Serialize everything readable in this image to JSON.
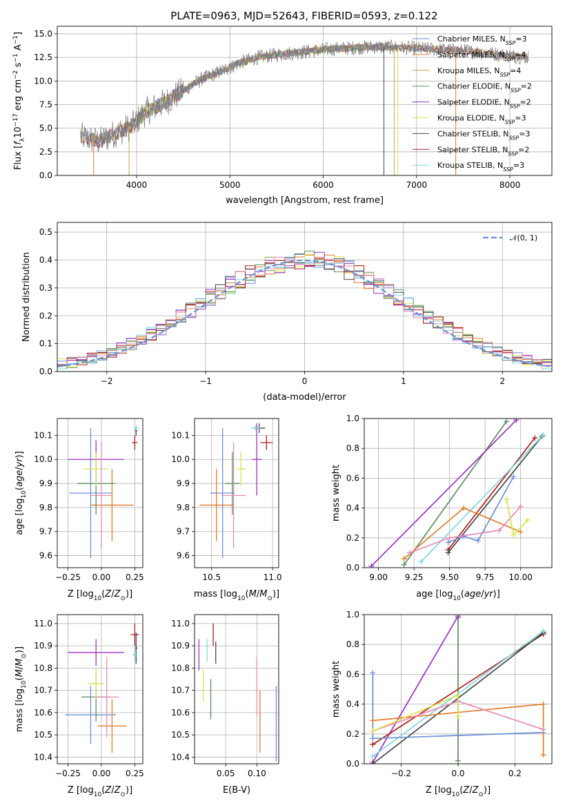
{
  "title": "PLATE=0963, MJD=52643, FIBERID=0593, z=0.122",
  "colors": {
    "Chabrier MILES": "#6a8fd6",
    "Salpeter MILES": "#e07c2a",
    "Kroupa MILES": "#c8a24a",
    "Chabrier ELODIE": "#5c8a5c",
    "Salpeter ELODIE": "#9a2fc0",
    "Kroupa ELODIE": "#d8e34a",
    "Chabrier STELIB": "#444444",
    "Salpeter STELIB": "#b01a1a",
    "Kroupa STELIB": "#7fd6e0",
    "pink": "#e38ab5",
    "gray": "#808080",
    "normal": "#6a8fd6"
  },
  "chart_data": [
    {
      "type": "line",
      "id": "spectrum",
      "xlabel": "wavelength [Angstrom, rest frame]",
      "ylabel": "Flux [f_λ10^-17 erg cm^-2 s^-1 A^-1]",
      "ylabel_parts": {
        "a": "Flux [",
        "b": "f",
        "c": "λ",
        "d": "10",
        "e": "−17",
        "f": " erg cm",
        "g": "−2",
        "h": " s",
        "i": "−1",
        "j": " A",
        "k": "−1",
        "l": "]"
      },
      "xlim": [
        3150,
        8450
      ],
      "ylim": [
        0,
        15.8
      ],
      "xticks": [
        4000,
        5000,
        6000,
        7000,
        8000
      ],
      "yticks": [
        0.0,
        2.5,
        5.0,
        7.5,
        10.0,
        12.5,
        15.0
      ],
      "ytick_labels": [
        "0.0",
        "2.5",
        "5.0",
        "7.5",
        "10.0",
        "12.5",
        "15.0"
      ],
      "continuum": [
        [
          3400,
          4.1
        ],
        [
          3600,
          3.6
        ],
        [
          3800,
          4.6
        ],
        [
          3950,
          5.2
        ],
        [
          4100,
          6.8
        ],
        [
          4300,
          7.7
        ],
        [
          4500,
          9.0
        ],
        [
          4700,
          10.2
        ],
        [
          4900,
          11.0
        ],
        [
          5100,
          11.9
        ],
        [
          5300,
          12.5
        ],
        [
          5500,
          12.8
        ],
        [
          5700,
          13.0
        ],
        [
          5900,
          13.2
        ],
        [
          6100,
          13.4
        ],
        [
          6300,
          13.5
        ],
        [
          6500,
          13.6
        ],
        [
          6700,
          13.6
        ],
        [
          6900,
          13.5
        ],
        [
          7100,
          13.4
        ],
        [
          7300,
          13.3
        ],
        [
          7500,
          13.2
        ],
        [
          7700,
          13.0
        ],
        [
          7900,
          12.8
        ],
        [
          8100,
          12.6
        ],
        [
          8200,
          12.5
        ]
      ],
      "series": [
        {
          "name": "Chabrier MILES, N_SSP=3",
          "n": "3"
        },
        {
          "name": "Salpeter MILES, N_SSP=4",
          "n": "4"
        },
        {
          "name": "Kroupa MILES, N_SSP=4",
          "n": "4"
        },
        {
          "name": "Chabrier ELODIE, N_SSP=2",
          "n": "2"
        },
        {
          "name": "Salpeter ELODIE, N_SSP=2",
          "n": "2"
        },
        {
          "name": "Kroupa ELODIE, N_SSP=3",
          "n": "3"
        },
        {
          "name": "Chabrier STELIB, N_SSP=3",
          "n": "3"
        },
        {
          "name": "Salpeter STELIB, N_SSP=2",
          "n": "2"
        },
        {
          "name": "Kroupa STELIB, N_SSP=3",
          "n": "3"
        }
      ],
      "legend": [
        {
          "base": "Chabrier MILES, N",
          "sub": "SSP",
          "tail": "=3"
        },
        {
          "base": "Salpeter MILES, N",
          "sub": "SSP",
          "tail": "=4"
        },
        {
          "base": "Kroupa MILES, N",
          "sub": "SSP",
          "tail": "=4"
        },
        {
          "base": "Chabrier ELODIE, N",
          "sub": "SSP",
          "tail": "=2"
        },
        {
          "base": "Salpeter ELODIE, N",
          "sub": "SSP",
          "tail": "=2"
        },
        {
          "base": "Kroupa ELODIE, N",
          "sub": "SSP",
          "tail": "=3"
        },
        {
          "base": "Chabrier STELIB, N",
          "sub": "SSP",
          "tail": "=3"
        },
        {
          "base": "Salpeter STELIB, N",
          "sub": "SSP",
          "tail": "=2"
        },
        {
          "base": "Kroupa STELIB, N",
          "sub": "SSP",
          "tail": "=3"
        }
      ],
      "legend_position": "upper-right"
    },
    {
      "type": "histogram",
      "id": "residuals",
      "xlabel": "(data-model)/error",
      "ylabel": "Normed distribution",
      "xlim": [
        -2.5,
        2.5
      ],
      "ylim": [
        0,
        0.535
      ],
      "xticks": [
        -2,
        -1,
        0,
        1,
        2
      ],
      "xtick_labels": [
        "−2",
        "−1",
        "0",
        "1",
        "2"
      ],
      "yticks": [
        0.0,
        0.1,
        0.2,
        0.3,
        0.4,
        0.5
      ],
      "ytick_labels": [
        "0.0",
        "0.1",
        "0.2",
        "0.3",
        "0.4",
        "0.5"
      ],
      "bin_width": 0.1,
      "bin_start": -2.5,
      "legend": {
        "label": "𝒩(0, 1)"
      },
      "legend_position": "upper-right",
      "grid": true
    },
    {
      "type": "errorbar",
      "id": "age_vs_Z",
      "xlabel": "Z [log10(Z/Z⊙)]",
      "ylabel": "age [log10(age/yr)]",
      "xlim": [
        -0.33,
        0.31
      ],
      "ylim": [
        9.55,
        10.17
      ],
      "xticks": [
        -0.25,
        0.0,
        0.25
      ],
      "xtick_labels": [
        "−0.25",
        "0.00",
        "0.25"
      ],
      "yticks": [
        9.6,
        9.7,
        9.8,
        9.9,
        10.0,
        10.1
      ],
      "ytick_labels": [
        "9.6",
        "9.7",
        "9.8",
        "9.9",
        "10.0",
        "10.1"
      ],
      "points": [
        {
          "color": "normal",
          "x": -0.08,
          "xerr": 0.16,
          "y": 9.86,
          "yerr": 0.27
        },
        {
          "color": "Salpeter MILES",
          "x": 0.08,
          "xerr": 0.16,
          "y": 9.81,
          "yerr": 0.15
        },
        {
          "color": "Chabrier ELODIE",
          "x": -0.04,
          "xerr": 0.14,
          "y": 9.9,
          "yerr": 0.13
        },
        {
          "color": "Salpeter ELODIE",
          "x": -0.04,
          "xerr": 0.21,
          "y": 10.0,
          "yerr": 0.08
        },
        {
          "color": "Kroupa ELODIE",
          "x": -0.04,
          "xerr": 0.09,
          "y": 9.96,
          "yerr": 0.07
        },
        {
          "color": "pink",
          "x": 0.0,
          "xerr": 0.08,
          "y": 9.85,
          "yerr": 0.22
        },
        {
          "color": "Salpeter STELIB",
          "x": 0.25,
          "xerr": 0.02,
          "y": 10.07,
          "yerr": 0.03
        },
        {
          "color": "Chabrier STELIB",
          "x": 0.26,
          "xerr": 0.01,
          "y": 10.12,
          "yerr": 0.02
        },
        {
          "color": "Kroupa STELIB",
          "x": 0.26,
          "xerr": 0.02,
          "y": 10.13,
          "yerr": 0.01
        }
      ]
    },
    {
      "type": "errorbar",
      "id": "age_vs_mass",
      "xlabel": "mass [log10(M/M⊙)]",
      "ylabel": "",
      "xlim": [
        10.36,
        11.05
      ],
      "ylim": [
        9.55,
        10.17
      ],
      "xticks": [
        10.5,
        11.0
      ],
      "xtick_labels": [
        "10.5",
        "11.0"
      ],
      "yticks": [
        9.6,
        9.7,
        9.8,
        9.9,
        10.0,
        10.1
      ],
      "ytick_labels": [
        "9.6",
        "9.7",
        "9.8",
        "9.9",
        "10.0",
        "10.1"
      ],
      "points": [
        {
          "color": "normal",
          "x": 10.59,
          "xerr": 0.1,
          "y": 9.86,
          "yerr": 0.27
        },
        {
          "color": "Salpeter MILES",
          "x": 10.54,
          "xerr": 0.14,
          "y": 9.81,
          "yerr": 0.15
        },
        {
          "color": "Chabrier ELODIE",
          "x": 10.67,
          "xerr": 0.06,
          "y": 9.9,
          "yerr": 0.13
        },
        {
          "color": "Salpeter ELODIE",
          "x": 10.87,
          "xerr": 0.04,
          "y": 10.0,
          "yerr": 0.15
        },
        {
          "color": "Kroupa ELODIE",
          "x": 10.74,
          "xerr": 0.04,
          "y": 9.96,
          "yerr": 0.07
        },
        {
          "color": "pink",
          "x": 10.68,
          "xerr": 0.1,
          "y": 9.85,
          "yerr": 0.22
        },
        {
          "color": "Salpeter STELIB",
          "x": 10.95,
          "xerr": 0.05,
          "y": 10.07,
          "yerr": 0.03
        },
        {
          "color": "Chabrier STELIB",
          "x": 10.89,
          "xerr": 0.05,
          "y": 10.13,
          "yerr": 0.02
        },
        {
          "color": "Kroupa STELIB",
          "x": 10.86,
          "xerr": 0.04,
          "y": 10.13,
          "yerr": 0.01
        }
      ]
    },
    {
      "type": "line",
      "id": "weight_vs_age",
      "xlabel": "age [log10(age/yr)]",
      "ylabel": "mass weight",
      "xlim": [
        8.9,
        10.22
      ],
      "ylim": [
        0,
        1.0
      ],
      "xticks": [
        9.0,
        9.25,
        9.5,
        9.75,
        10.0
      ],
      "xtick_labels": [
        "9.00",
        "9.25",
        "9.50",
        "9.75",
        "10.00"
      ],
      "yticks": [
        0.0,
        0.2,
        0.4,
        0.6,
        0.8,
        1.0
      ],
      "ytick_labels": [
        "0.0",
        "0.2",
        "0.4",
        "0.6",
        "0.8",
        "1.0"
      ],
      "series": [
        {
          "color": "Chabrier ELODIE",
          "x": [
            9.18,
            9.9
          ],
          "y": [
            0.02,
            0.98
          ]
        },
        {
          "color": "Salpeter ELODIE",
          "x": [
            8.95,
            9.97
          ],
          "y": [
            0.01,
            0.99
          ]
        },
        {
          "color": "Salpeter STELIB",
          "x": [
            9.49,
            10.1
          ],
          "y": [
            0.12,
            0.87
          ]
        },
        {
          "color": "Chabrier STELIB",
          "x": [
            9.49,
            10.15
          ],
          "y": [
            0.1,
            0.88
          ]
        },
        {
          "color": "Kroupa STELIB",
          "x": [
            9.3,
            10.16
          ],
          "y": [
            0.04,
            0.89
          ]
        },
        {
          "color": "normal",
          "x": [
            9.49,
            9.6,
            9.7,
            9.95
          ],
          "y": [
            0.17,
            0.21,
            0.18,
            0.61
          ]
        },
        {
          "color": "Salpeter MILES",
          "x": [
            9.18,
            9.6,
            10.0
          ],
          "y": [
            0.06,
            0.4,
            0.24
          ]
        },
        {
          "color": "pink",
          "x": [
            9.22,
            9.5,
            9.85,
            10.0
          ],
          "y": [
            0.1,
            0.2,
            0.25,
            0.41
          ]
        },
        {
          "color": "Kroupa ELODIE",
          "x": [
            9.9,
            9.95,
            10.05
          ],
          "y": [
            0.46,
            0.22,
            0.32
          ]
        }
      ],
      "grid": true
    },
    {
      "type": "errorbar",
      "id": "mass_vs_Z",
      "xlabel": "Z [log10(Z/Z⊙)]",
      "ylabel": "mass [log10(M/M⊙)]",
      "xlim": [
        -0.33,
        0.31
      ],
      "ylim": [
        10.37,
        11.04
      ],
      "xticks": [
        -0.25,
        0.0,
        0.25
      ],
      "xtick_labels": [
        "−0.25",
        "0.00",
        "0.25"
      ],
      "yticks": [
        10.4,
        10.5,
        10.6,
        10.7,
        10.8,
        10.9,
        11.0
      ],
      "ytick_labels": [
        "10.4",
        "10.5",
        "10.6",
        "10.7",
        "10.8",
        "10.9",
        "11.0"
      ],
      "points": [
        {
          "color": "normal",
          "x": -0.08,
          "xerr": 0.19,
          "y": 10.59,
          "yerr": 0.13
        },
        {
          "color": "Salpeter MILES",
          "x": 0.08,
          "xerr": 0.11,
          "y": 10.54,
          "yerr": 0.12
        },
        {
          "color": "Chabrier ELODIE",
          "x": -0.04,
          "xerr": 0.11,
          "y": 10.67,
          "yerr": 0.11
        },
        {
          "color": "Salpeter ELODIE",
          "x": -0.04,
          "xerr": 0.21,
          "y": 10.87,
          "yerr": 0.06
        },
        {
          "color": "Kroupa ELODIE",
          "x": -0.04,
          "xerr": 0.06,
          "y": 10.73,
          "yerr": 0.07
        },
        {
          "color": "pink",
          "x": 0.04,
          "xerr": 0.09,
          "y": 10.67,
          "yerr": 0.18
        },
        {
          "color": "Salpeter STELIB",
          "x": 0.25,
          "xerr": 0.03,
          "y": 10.95,
          "yerr": 0.05
        },
        {
          "color": "Chabrier STELIB",
          "x": 0.26,
          "xerr": 0.01,
          "y": 10.89,
          "yerr": 0.07
        },
        {
          "color": "Kroupa STELIB",
          "x": 0.25,
          "xerr": 0.02,
          "y": 10.86,
          "yerr": 0.04
        }
      ]
    },
    {
      "type": "errorbar",
      "id": "mass_vs_EBV",
      "xlabel": "E(B-V)",
      "ylabel": "",
      "xlim": [
        0.0,
        0.135
      ],
      "ylim": [
        10.37,
        11.04
      ],
      "xticks": [
        0.05,
        0.1
      ],
      "xtick_labels": [
        "0.05",
        "0.10"
      ],
      "yticks": [
        10.4,
        10.5,
        10.6,
        10.7,
        10.8,
        10.9,
        11.0
      ],
      "ytick_labels": [
        "10.4",
        "10.5",
        "10.6",
        "10.7",
        "10.8",
        "10.9",
        "11.0"
      ],
      "points": [
        {
          "color": "Salpeter ELODIE",
          "x": 0.007,
          "y": 10.86,
          "yerr": 0.07
        },
        {
          "color": "Kroupa ELODIE",
          "x": 0.014,
          "y": 10.72,
          "yerr": 0.07
        },
        {
          "color": "Kroupa STELIB",
          "x": 0.02,
          "y": 10.88,
          "yerr": 0.05
        },
        {
          "color": "Chabrier ELODIE",
          "x": 0.026,
          "y": 10.66,
          "yerr": 0.09
        },
        {
          "color": "Salpeter STELIB",
          "x": 0.03,
          "y": 10.95,
          "yerr": 0.05
        },
        {
          "color": "Chabrier STELIB",
          "x": 0.034,
          "y": 10.87,
          "yerr": 0.05
        },
        {
          "color": "pink",
          "x": 0.1,
          "y": 10.72,
          "yerr": 0.13
        },
        {
          "color": "Salpeter MILES",
          "x": 0.105,
          "y": 10.56,
          "yerr": 0.14
        },
        {
          "color": "normal",
          "x": 0.131,
          "y": 10.55,
          "yerr": 0.17
        }
      ]
    },
    {
      "type": "line",
      "id": "weight_vs_Z",
      "xlabel": "Z [log10(Z/Z⊙)]",
      "ylabel": "mass weight",
      "xlim": [
        -0.33,
        0.33
      ],
      "ylim": [
        0,
        1.0
      ],
      "xticks": [
        -0.2,
        0.0,
        0.2
      ],
      "xtick_labels": [
        "−0.2",
        "0.0",
        "0.2"
      ],
      "yticks": [
        0.0,
        0.2,
        0.4,
        0.6,
        0.8,
        1.0
      ],
      "ytick_labels": [
        "0.0",
        "0.2",
        "0.4",
        "0.6",
        "0.8",
        "1.0"
      ],
      "series": [
        {
          "color": "Chabrier ELODIE",
          "x": [
            0.0,
            0.0
          ],
          "y": [
            0.98,
            0.02
          ]
        },
        {
          "color": "Salpeter ELODIE",
          "x": [
            -0.3,
            0.0
          ],
          "y": [
            0.01,
            0.99
          ]
        },
        {
          "color": "Salpeter STELIB",
          "x": [
            -0.3,
            0.3
          ],
          "y": [
            0.13,
            0.87
          ]
        },
        {
          "color": "Chabrier STELIB",
          "x": [
            -0.3,
            0.3
          ],
          "y": [
            0.0,
            0.88
          ]
        },
        {
          "color": "Kroupa STELIB",
          "x": [
            -0.3,
            0.3
          ],
          "y": [
            0.05,
            0.89
          ]
        },
        {
          "color": "normal",
          "x": [
            -0.3,
            -0.3,
            0.3
          ],
          "y": [
            0.61,
            0.17,
            0.21
          ]
        },
        {
          "color": "Salpeter MILES",
          "x": [
            -0.3,
            0.3,
            0.3
          ],
          "y": [
            0.29,
            0.4,
            0.06
          ]
        },
        {
          "color": "pink",
          "x": [
            -0.3,
            0.0,
            0.3
          ],
          "y": [
            0.22,
            0.42,
            0.23
          ]
        },
        {
          "color": "Kroupa ELODIE",
          "x": [
            -0.3,
            0.0,
            0.0
          ],
          "y": [
            0.22,
            0.46,
            0.32
          ]
        }
      ],
      "grid": true
    }
  ]
}
